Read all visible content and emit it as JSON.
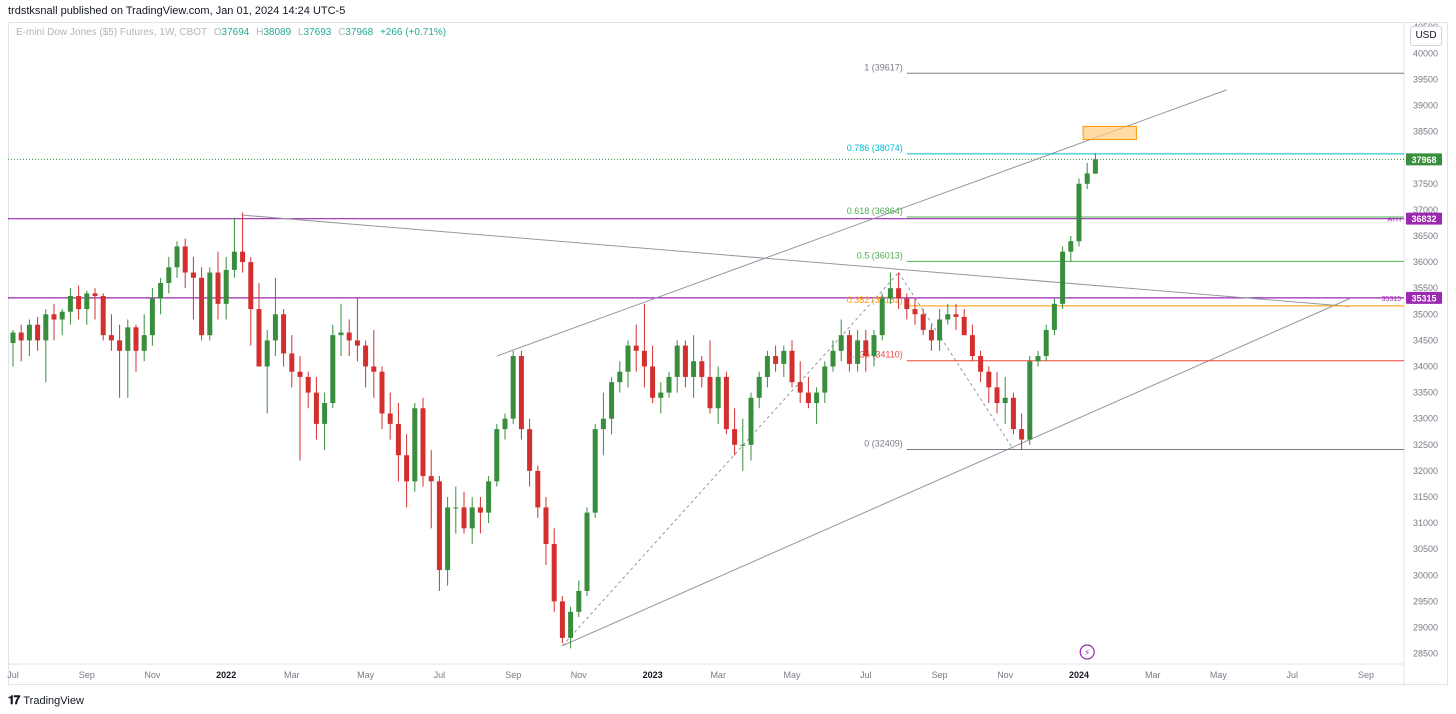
{
  "header": {
    "published": "trdstksnall published on TradingView.com, Jan 01, 2024 14:24 UTC-5",
    "currency_button": "USD"
  },
  "legend": {
    "symbol": "E-mini Dow Jones ($5) Futures, 1W, CBOT",
    "open_label": "O",
    "open": "37694",
    "high_label": "H",
    "high": "38089",
    "low_label": "L",
    "low": "37693",
    "close_label": "C",
    "close": "37968",
    "change": "+266 (+0.71%)"
  },
  "footer": {
    "brand": "TradingView"
  },
  "colors": {
    "up": "#22ab94",
    "down": "#f23645",
    "up_body": "#388e3c",
    "down_body": "#d32f2f",
    "purple": "#9c27b0",
    "fib_1": "#787b86",
    "fib_786": "#00bcd4",
    "fib_618": "#4caf50",
    "fib_05": "#4caf50",
    "fib_382": "#ff9800",
    "fib_236": "#f44336",
    "fib_0": "#787b86",
    "price_line": "#388e3c",
    "box_fill": "#ffcc80",
    "box_stroke": "#ff9800"
  },
  "chart_data": {
    "type": "candlestick",
    "timeframe": "1W",
    "ylim": [
      28300,
      40600
    ],
    "y_ticks": [
      28500,
      29000,
      29500,
      30000,
      30500,
      31000,
      31500,
      32000,
      32500,
      33000,
      33500,
      34000,
      34500,
      35000,
      35500,
      36000,
      36500,
      37000,
      37500,
      38000,
      38500,
      39000,
      39500,
      40000,
      40500
    ],
    "x_labels": [
      "Jul",
      "Sep",
      "Nov",
      "2022",
      "Mar",
      "May",
      "Jul",
      "Sep",
      "Nov",
      "2023",
      "Mar",
      "May",
      "Jul",
      "Sep",
      "Nov",
      "2024",
      "Mar",
      "May",
      "Jul",
      "Sep"
    ],
    "x_label_weeks": [
      0,
      9,
      17,
      26,
      34,
      43,
      52,
      61,
      69,
      78,
      86,
      95,
      104,
      113,
      121,
      130,
      139,
      147,
      156,
      165
    ],
    "candles": [
      {
        "w": 0,
        "o": 34450,
        "h": 34700,
        "l": 34000,
        "c": 34650
      },
      {
        "w": 1,
        "o": 34650,
        "h": 34800,
        "l": 34100,
        "c": 34500
      },
      {
        "w": 2,
        "o": 34500,
        "h": 34900,
        "l": 34200,
        "c": 34800
      },
      {
        "w": 3,
        "o": 34800,
        "h": 34950,
        "l": 34300,
        "c": 34500
      },
      {
        "w": 4,
        "o": 34500,
        "h": 35100,
        "l": 33700,
        "c": 35000
      },
      {
        "w": 5,
        "o": 35000,
        "h": 35200,
        "l": 34500,
        "c": 34900
      },
      {
        "w": 6,
        "o": 34900,
        "h": 35100,
        "l": 34600,
        "c": 35050
      },
      {
        "w": 7,
        "o": 35050,
        "h": 35500,
        "l": 34800,
        "c": 35350
      },
      {
        "w": 8,
        "o": 35350,
        "h": 35550,
        "l": 34900,
        "c": 35100
      },
      {
        "w": 9,
        "o": 35100,
        "h": 35450,
        "l": 34800,
        "c": 35400
      },
      {
        "w": 10,
        "o": 35400,
        "h": 35500,
        "l": 34900,
        "c": 35350
      },
      {
        "w": 11,
        "o": 35350,
        "h": 35400,
        "l": 34500,
        "c": 34600
      },
      {
        "w": 12,
        "o": 34600,
        "h": 35000,
        "l": 34300,
        "c": 34500
      },
      {
        "w": 13,
        "o": 34500,
        "h": 34800,
        "l": 33400,
        "c": 34300
      },
      {
        "w": 14,
        "o": 34300,
        "h": 34900,
        "l": 33400,
        "c": 34750
      },
      {
        "w": 15,
        "o": 34750,
        "h": 34800,
        "l": 33900,
        "c": 34300
      },
      {
        "w": 16,
        "o": 34300,
        "h": 35000,
        "l": 34100,
        "c": 34600
      },
      {
        "w": 17,
        "o": 34600,
        "h": 35500,
        "l": 34400,
        "c": 35300
      },
      {
        "w": 18,
        "o": 35300,
        "h": 35700,
        "l": 35000,
        "c": 35600
      },
      {
        "w": 19,
        "o": 35600,
        "h": 36100,
        "l": 35400,
        "c": 35900
      },
      {
        "w": 20,
        "o": 35900,
        "h": 36400,
        "l": 35700,
        "c": 36300
      },
      {
        "w": 21,
        "o": 36300,
        "h": 36450,
        "l": 35500,
        "c": 35800
      },
      {
        "w": 22,
        "o": 35800,
        "h": 36100,
        "l": 34900,
        "c": 35700
      },
      {
        "w": 23,
        "o": 35700,
        "h": 35900,
        "l": 34500,
        "c": 34600
      },
      {
        "w": 24,
        "o": 34600,
        "h": 35900,
        "l": 34500,
        "c": 35800
      },
      {
        "w": 25,
        "o": 35800,
        "h": 36200,
        "l": 34900,
        "c": 35200
      },
      {
        "w": 26,
        "o": 35200,
        "h": 36100,
        "l": 34900,
        "c": 35850
      },
      {
        "w": 27,
        "o": 35850,
        "h": 36850,
        "l": 35700,
        "c": 36200
      },
      {
        "w": 28,
        "o": 36200,
        "h": 36950,
        "l": 35800,
        "c": 36000
      },
      {
        "w": 29,
        "o": 36000,
        "h": 36100,
        "l": 34400,
        "c": 35100
      },
      {
        "w": 30,
        "o": 35100,
        "h": 35600,
        "l": 34000,
        "c": 34000
      },
      {
        "w": 31,
        "o": 34000,
        "h": 34700,
        "l": 33100,
        "c": 34500
      },
      {
        "w": 32,
        "o": 34500,
        "h": 35700,
        "l": 34200,
        "c": 35000
      },
      {
        "w": 33,
        "o": 35000,
        "h": 35100,
        "l": 34000,
        "c": 34250
      },
      {
        "w": 34,
        "o": 34250,
        "h": 34600,
        "l": 33600,
        "c": 33900
      },
      {
        "w": 35,
        "o": 33900,
        "h": 34200,
        "l": 32200,
        "c": 33800
      },
      {
        "w": 36,
        "o": 33800,
        "h": 33900,
        "l": 33200,
        "c": 33500
      },
      {
        "w": 37,
        "o": 33500,
        "h": 33800,
        "l": 32600,
        "c": 32900
      },
      {
        "w": 38,
        "o": 32900,
        "h": 33500,
        "l": 32400,
        "c": 33300
      },
      {
        "w": 39,
        "o": 33300,
        "h": 34800,
        "l": 33200,
        "c": 34600
      },
      {
        "w": 40,
        "o": 34600,
        "h": 35200,
        "l": 34200,
        "c": 34650
      },
      {
        "w": 41,
        "o": 34650,
        "h": 34900,
        "l": 34200,
        "c": 34500
      },
      {
        "w": 42,
        "o": 34500,
        "h": 35300,
        "l": 34100,
        "c": 34400
      },
      {
        "w": 43,
        "o": 34400,
        "h": 34500,
        "l": 33600,
        "c": 34000
      },
      {
        "w": 44,
        "o": 34000,
        "h": 34700,
        "l": 33400,
        "c": 33900
      },
      {
        "w": 45,
        "o": 33900,
        "h": 34000,
        "l": 32800,
        "c": 33100
      },
      {
        "w": 46,
        "o": 33100,
        "h": 33500,
        "l": 32600,
        "c": 32900
      },
      {
        "w": 47,
        "o": 32900,
        "h": 33300,
        "l": 31800,
        "c": 32300
      },
      {
        "w": 48,
        "o": 32300,
        "h": 32700,
        "l": 31300,
        "c": 31800
      },
      {
        "w": 49,
        "o": 31800,
        "h": 33300,
        "l": 31600,
        "c": 33200
      },
      {
        "w": 50,
        "o": 33200,
        "h": 33400,
        "l": 31700,
        "c": 31900
      },
      {
        "w": 51,
        "o": 31900,
        "h": 32400,
        "l": 30900,
        "c": 31800
      },
      {
        "w": 52,
        "o": 31800,
        "h": 31900,
        "l": 29700,
        "c": 30100
      },
      {
        "w": 53,
        "o": 30100,
        "h": 31500,
        "l": 29800,
        "c": 31300
      },
      {
        "w": 54,
        "o": 31300,
        "h": 31700,
        "l": 30800,
        "c": 31300
      },
      {
        "w": 55,
        "o": 31300,
        "h": 31600,
        "l": 30800,
        "c": 30900
      },
      {
        "w": 56,
        "o": 30900,
        "h": 31500,
        "l": 30600,
        "c": 31300
      },
      {
        "w": 57,
        "o": 31300,
        "h": 31500,
        "l": 30800,
        "c": 31200
      },
      {
        "w": 58,
        "o": 31200,
        "h": 31900,
        "l": 31000,
        "c": 31800
      },
      {
        "w": 59,
        "o": 31800,
        "h": 32900,
        "l": 31700,
        "c": 32800
      },
      {
        "w": 60,
        "o": 32800,
        "h": 33100,
        "l": 32600,
        "c": 33000
      },
      {
        "w": 61,
        "o": 33000,
        "h": 34300,
        "l": 32900,
        "c": 34200
      },
      {
        "w": 62,
        "o": 34200,
        "h": 34300,
        "l": 32600,
        "c": 32800
      },
      {
        "w": 63,
        "o": 32800,
        "h": 33000,
        "l": 31700,
        "c": 32000
      },
      {
        "w": 64,
        "o": 32000,
        "h": 32100,
        "l": 31100,
        "c": 31300
      },
      {
        "w": 65,
        "o": 31300,
        "h": 31500,
        "l": 30200,
        "c": 30600
      },
      {
        "w": 66,
        "o": 30600,
        "h": 30900,
        "l": 29300,
        "c": 29500
      },
      {
        "w": 67,
        "o": 29500,
        "h": 29600,
        "l": 28700,
        "c": 28800
      },
      {
        "w": 68,
        "o": 28800,
        "h": 29400,
        "l": 28600,
        "c": 29300
      },
      {
        "w": 69,
        "o": 29300,
        "h": 29900,
        "l": 29200,
        "c": 29700
      },
      {
        "w": 70,
        "o": 29700,
        "h": 31300,
        "l": 29600,
        "c": 31200
      },
      {
        "w": 71,
        "o": 31200,
        "h": 32900,
        "l": 31100,
        "c": 32800
      },
      {
        "w": 72,
        "o": 32800,
        "h": 33500,
        "l": 32300,
        "c": 33000
      },
      {
        "w": 73,
        "o": 33000,
        "h": 33800,
        "l": 32700,
        "c": 33700
      },
      {
        "w": 74,
        "o": 33700,
        "h": 34100,
        "l": 33500,
        "c": 33900
      },
      {
        "w": 75,
        "o": 33900,
        "h": 34500,
        "l": 33600,
        "c": 34400
      },
      {
        "w": 76,
        "o": 34400,
        "h": 34800,
        "l": 33900,
        "c": 34300
      },
      {
        "w": 77,
        "o": 34300,
        "h": 35200,
        "l": 33600,
        "c": 34000
      },
      {
        "w": 78,
        "o": 34000,
        "h": 34400,
        "l": 33300,
        "c": 33400
      },
      {
        "w": 79,
        "o": 33400,
        "h": 33700,
        "l": 33100,
        "c": 33500
      },
      {
        "w": 80,
        "o": 33500,
        "h": 33900,
        "l": 33400,
        "c": 33800
      },
      {
        "w": 81,
        "o": 33800,
        "h": 34500,
        "l": 33500,
        "c": 34400
      },
      {
        "w": 82,
        "o": 34400,
        "h": 34500,
        "l": 33600,
        "c": 33800
      },
      {
        "w": 83,
        "o": 33800,
        "h": 34600,
        "l": 33400,
        "c": 34100
      },
      {
        "w": 84,
        "o": 34100,
        "h": 34200,
        "l": 33600,
        "c": 33800
      },
      {
        "w": 85,
        "o": 33800,
        "h": 34500,
        "l": 33100,
        "c": 33200
      },
      {
        "w": 86,
        "o": 33200,
        "h": 34000,
        "l": 32900,
        "c": 33800
      },
      {
        "w": 87,
        "o": 33800,
        "h": 33900,
        "l": 32700,
        "c": 32800
      },
      {
        "w": 88,
        "o": 32800,
        "h": 33200,
        "l": 32300,
        "c": 32500
      },
      {
        "w": 89,
        "o": 32500,
        "h": 33000,
        "l": 32000,
        "c": 32500
      },
      {
        "w": 90,
        "o": 32500,
        "h": 33500,
        "l": 32200,
        "c": 33400
      },
      {
        "w": 91,
        "o": 33400,
        "h": 33900,
        "l": 33200,
        "c": 33800
      },
      {
        "w": 92,
        "o": 33800,
        "h": 34300,
        "l": 33600,
        "c": 34200
      },
      {
        "w": 93,
        "o": 34200,
        "h": 34400,
        "l": 33900,
        "c": 34050
      },
      {
        "w": 94,
        "o": 34050,
        "h": 34400,
        "l": 33800,
        "c": 34300
      },
      {
        "w": 95,
        "o": 34300,
        "h": 34500,
        "l": 33600,
        "c": 33700
      },
      {
        "w": 96,
        "o": 33700,
        "h": 34100,
        "l": 33300,
        "c": 33500
      },
      {
        "w": 97,
        "o": 33500,
        "h": 33800,
        "l": 33200,
        "c": 33300
      },
      {
        "w": 98,
        "o": 33300,
        "h": 33600,
        "l": 32900,
        "c": 33500
      },
      {
        "w": 99,
        "o": 33500,
        "h": 34100,
        "l": 33300,
        "c": 34000
      },
      {
        "w": 100,
        "o": 34000,
        "h": 34500,
        "l": 33900,
        "c": 34300
      },
      {
        "w": 101,
        "o": 34300,
        "h": 34900,
        "l": 34100,
        "c": 34600
      },
      {
        "w": 102,
        "o": 34600,
        "h": 34700,
        "l": 33900,
        "c": 34050
      },
      {
        "w": 103,
        "o": 34050,
        "h": 34700,
        "l": 33900,
        "c": 34500
      },
      {
        "w": 104,
        "o": 34500,
        "h": 34700,
        "l": 33900,
        "c": 34200
      },
      {
        "w": 105,
        "o": 34200,
        "h": 34700,
        "l": 34000,
        "c": 34600
      },
      {
        "w": 106,
        "o": 34600,
        "h": 35400,
        "l": 34500,
        "c": 35300
      },
      {
        "w": 107,
        "o": 35300,
        "h": 35800,
        "l": 35200,
        "c": 35500
      },
      {
        "w": 108,
        "o": 35500,
        "h": 35800,
        "l": 35100,
        "c": 35300
      },
      {
        "w": 109,
        "o": 35300,
        "h": 35400,
        "l": 34900,
        "c": 35100
      },
      {
        "w": 110,
        "o": 35100,
        "h": 35300,
        "l": 34800,
        "c": 35000
      },
      {
        "w": 111,
        "o": 35000,
        "h": 35100,
        "l": 34600,
        "c": 34700
      },
      {
        "w": 112,
        "o": 34700,
        "h": 34800,
        "l": 34300,
        "c": 34500
      },
      {
        "w": 113,
        "o": 34500,
        "h": 35100,
        "l": 34300,
        "c": 34900
      },
      {
        "w": 114,
        "o": 34900,
        "h": 35200,
        "l": 34800,
        "c": 35000
      },
      {
        "w": 115,
        "o": 35000,
        "h": 35200,
        "l": 34700,
        "c": 34950
      },
      {
        "w": 116,
        "o": 34950,
        "h": 35100,
        "l": 34600,
        "c": 34600
      },
      {
        "w": 117,
        "o": 34600,
        "h": 34800,
        "l": 34100,
        "c": 34200
      },
      {
        "w": 118,
        "o": 34200,
        "h": 34300,
        "l": 33700,
        "c": 33900
      },
      {
        "w": 119,
        "o": 33900,
        "h": 34000,
        "l": 33300,
        "c": 33600
      },
      {
        "w": 120,
        "o": 33600,
        "h": 33900,
        "l": 33100,
        "c": 33300
      },
      {
        "w": 121,
        "o": 33300,
        "h": 33800,
        "l": 32900,
        "c": 33400
      },
      {
        "w": 122,
        "o": 33400,
        "h": 33500,
        "l": 32700,
        "c": 32800
      },
      {
        "w": 123,
        "o": 32800,
        "h": 33100,
        "l": 32400,
        "c": 32600
      },
      {
        "w": 124,
        "o": 32600,
        "h": 34200,
        "l": 32500,
        "c": 34100
      },
      {
        "w": 125,
        "o": 34100,
        "h": 34300,
        "l": 34000,
        "c": 34200
      },
      {
        "w": 126,
        "o": 34200,
        "h": 34800,
        "l": 34100,
        "c": 34700
      },
      {
        "w": 127,
        "o": 34700,
        "h": 35300,
        "l": 34600,
        "c": 35200
      },
      {
        "w": 128,
        "o": 35200,
        "h": 36300,
        "l": 35100,
        "c": 36200
      },
      {
        "w": 129,
        "o": 36200,
        "h": 36500,
        "l": 36000,
        "c": 36400
      },
      {
        "w": 130,
        "o": 36400,
        "h": 37600,
        "l": 36300,
        "c": 37500
      },
      {
        "w": 131,
        "o": 37500,
        "h": 37900,
        "l": 37400,
        "c": 37700
      },
      {
        "w": 132,
        "o": 37694,
        "h": 38089,
        "l": 37693,
        "c": 37968
      }
    ],
    "horizontal_levels": [
      {
        "name": "ATH",
        "price": 36832,
        "label": "ATH",
        "badge": "36832",
        "color": "purple"
      },
      {
        "name": "35315",
        "price": 35315,
        "label": "35315",
        "badge": "35315",
        "color": "purple"
      }
    ],
    "last_price": {
      "price": 37968,
      "badge": "37968"
    },
    "fibonacci": [
      {
        "level": "1",
        "price": 39617,
        "label": "1 (39617)",
        "color": "fib_1"
      },
      {
        "level": "0.786",
        "price": 38074,
        "label": "0.786 (38074)",
        "color": "fib_786"
      },
      {
        "level": "0.618",
        "price": 36864,
        "label": "0.618 (36864)",
        "color": "fib_618"
      },
      {
        "level": "0.5",
        "price": 36013,
        "label": "0.5 (36013)",
        "color": "fib_05"
      },
      {
        "level": "0.382",
        "price": 35162,
        "label": "0.382 (35162)",
        "color": "fib_382"
      },
      {
        "level": "0.236",
        "price": 34110,
        "label": "0.236 (34110)",
        "color": "fib_236"
      },
      {
        "level": "0",
        "price": 32409,
        "label": "0 (32409)",
        "color": "fib_0"
      }
    ]
  }
}
